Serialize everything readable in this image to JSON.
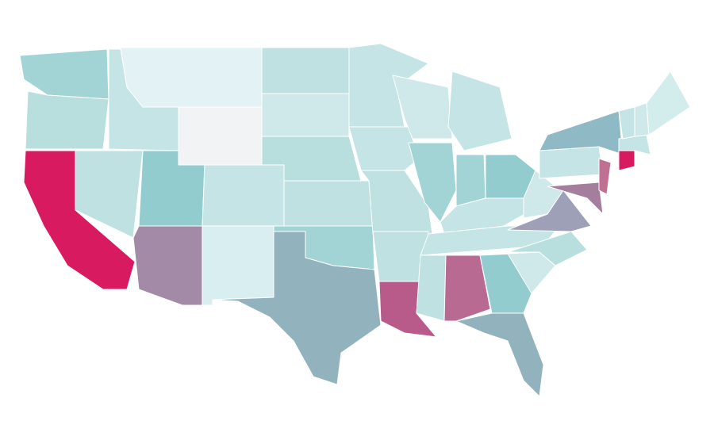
{
  "map": {
    "fills": [
      "#a2d4d6",
      "#b8dede",
      "#d81b60",
      "#bfe1e2",
      "#c5e4e5",
      "#e3f2f4",
      "#f1f3f4",
      "#93ccce",
      "#a38aa7",
      "#c5e4e5",
      "#d9eef0",
      "#bfe1e2",
      "#cfe8e9",
      "#b8dede",
      "#bfe1e2",
      "#a2d4d6",
      "#92b3bd",
      "#c5e4e5",
      "#c5e4e5",
      "#bfe1e2",
      "#bfe1e2",
      "#b85b8a",
      "#cfe8e9",
      "#a2d4d6",
      "#c5e4e5",
      "#a2d4d6",
      "#93ccce",
      "#c5e4e5",
      "#c5e4e5",
      "#bfe1e2",
      "#b86a92",
      "#93ccce",
      "#92b3bd",
      "#cfe8e9",
      "#b8dede",
      "#9ea0b8",
      "#cfe8e9",
      "#c5e4e5",
      "#8fb9c4",
      "#a57d9d",
      "#c07193",
      "#d81b60",
      "#c5e4e5",
      "#c5e4e5",
      "#cfe8e9",
      "#d3ecec"
    ]
  }
}
